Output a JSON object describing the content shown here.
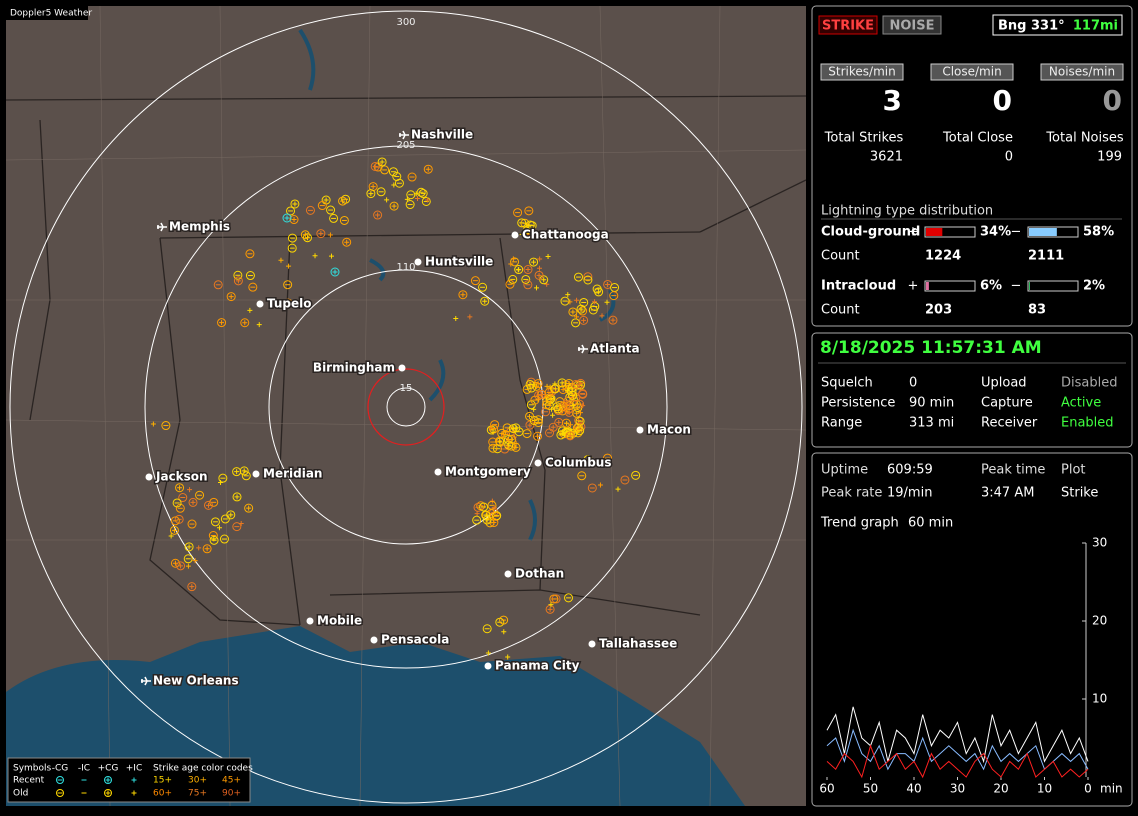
{
  "header": {
    "title": "Doppler5 Weather"
  },
  "map": {
    "range_rings": [
      300,
      205,
      110,
      15
    ],
    "cities": [
      "Nashville",
      "Memphis",
      "Chattanooga",
      "Huntsville",
      "Tupelo",
      "Atlanta",
      "Birmingham",
      "Macon",
      "Montgomery",
      "Columbus",
      "Jackson",
      "Meridian",
      "Dothan",
      "Mobile",
      "Pensacola",
      "Tallahassee",
      "Panama City",
      "New Orleans"
    ],
    "legend": {
      "symbols_title": "Symbols",
      "types": [
        "-CG",
        "-IC",
        "+CG",
        "+IC"
      ],
      "age_title": "Strike age color codes",
      "rows": [
        "Recent",
        "Old"
      ],
      "ages": [
        "15+",
        "30+",
        "45+",
        "60+",
        "75+",
        "90+"
      ]
    }
  },
  "panel": {
    "modes": [
      "STRIKE",
      "NOISE"
    ],
    "bearing": "Bng 331°",
    "distance": "117mi",
    "rates": [
      {
        "label": "Strikes/min",
        "value": 3
      },
      {
        "label": "Close/min",
        "value": 0
      },
      {
        "label": "Noises/min",
        "value": 0
      }
    ],
    "totals": [
      {
        "label": "Total Strikes",
        "value": 3621
      },
      {
        "label": "Total Close",
        "value": 0
      },
      {
        "label": "Total Noises",
        "value": 199
      }
    ],
    "distribution": {
      "title": "Lightning type distribution",
      "signs": [
        "+",
        "−"
      ],
      "count_label": "Count",
      "rows": [
        {
          "name": "Cloud-ground",
          "plus": {
            "value": 34,
            "label": "34%"
          },
          "minus": {
            "value": 58,
            "label": "58%"
          },
          "plus_count": 1224,
          "minus_count": 2111
        },
        {
          "name": "Intracloud",
          "plus": {
            "value": 6,
            "label": "6%"
          },
          "minus": {
            "value": 2,
            "label": "2%"
          },
          "plus_count": 203,
          "minus_count": 83
        }
      ]
    }
  },
  "status": {
    "datetime": "8/18/2025 11:57:31 AM",
    "settings": [
      [
        "Squelch",
        0,
        "Upload",
        "Disabled"
      ],
      [
        "Persistence",
        "90 min",
        "Capture",
        "Active"
      ],
      [
        "Range",
        "313 mi",
        "Receiver",
        "Enabled"
      ]
    ]
  },
  "stats": {
    "uptime": {
      "label": "Uptime",
      "value": "609:59"
    },
    "peak_rate": {
      "label": "Peak rate",
      "value": "19/min"
    },
    "peak_time": {
      "label": "Peak time",
      "value": "3:47 AM"
    },
    "plot": {
      "label": "Plot",
      "value": "Strike"
    },
    "trend": {
      "label": "Trend graph",
      "value": "60 min"
    }
  },
  "chart_data": {
    "type": "line",
    "x": [
      60,
      58,
      56,
      54,
      52,
      50,
      48,
      46,
      44,
      42,
      40,
      38,
      36,
      34,
      32,
      30,
      28,
      26,
      24,
      22,
      20,
      18,
      16,
      14,
      12,
      10,
      8,
      6,
      4,
      2,
      0
    ],
    "xlim": [
      60,
      0
    ],
    "xticks": [
      60,
      50,
      40,
      30,
      20,
      10,
      0
    ],
    "x_unit": "min",
    "ylim": [
      0,
      30
    ],
    "yticks": [
      10,
      20,
      30
    ],
    "series": [
      {
        "color": "#ffffff",
        "values": [
          6,
          8,
          3,
          9,
          5,
          4,
          7,
          2,
          6,
          5,
          3,
          8,
          4,
          6,
          5,
          7,
          3,
          5,
          2,
          8,
          4,
          6,
          3,
          5,
          7,
          2,
          4,
          6,
          3,
          5,
          2
        ]
      },
      {
        "color": "#88bbff",
        "values": [
          4,
          5,
          2,
          6,
          3,
          2,
          4,
          1,
          3,
          3,
          2,
          5,
          2,
          3,
          4,
          3,
          2,
          3,
          1,
          4,
          2,
          3,
          2,
          3,
          4,
          1,
          2,
          3,
          2,
          3,
          1
        ]
      },
      {
        "color": "#ff2020",
        "values": [
          2,
          1,
          3,
          2,
          0,
          4,
          1,
          2,
          3,
          1,
          2,
          0,
          3,
          1,
          2,
          1,
          0,
          2,
          3,
          1,
          0,
          2,
          1,
          3,
          0,
          1,
          2,
          0,
          1,
          0,
          1
        ]
      }
    ]
  }
}
